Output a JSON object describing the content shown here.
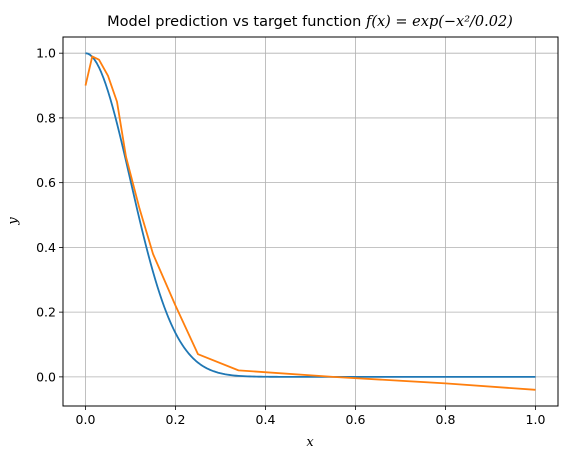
{
  "chart_data": {
    "type": "line",
    "title_text": "Model prediction vs target function ",
    "title_math": "f(x) = exp(−x²/0.02)",
    "xlabel": "x",
    "ylabel": "y",
    "xlim": [
      -0.05,
      1.05
    ],
    "ylim": [
      -0.09,
      1.05
    ],
    "grid": true,
    "x_ticks": [
      0.0,
      0.2,
      0.4,
      0.6,
      0.8,
      1.0
    ],
    "x_tick_labels": [
      "0.0",
      "0.2",
      "0.4",
      "0.6",
      "0.8",
      "1.0"
    ],
    "y_ticks": [
      0.0,
      0.2,
      0.4,
      0.6,
      0.8,
      1.0
    ],
    "y_tick_labels": [
      "0.0",
      "0.2",
      "0.4",
      "0.6",
      "0.8",
      "1.0"
    ],
    "series": [
      {
        "color": "#1f77b4",
        "function": "exp(-x^2/0.02)",
        "x_range": [
          0,
          1
        ]
      },
      {
        "color": "#ff7f0e",
        "x": [
          0.0,
          0.015,
          0.03,
          0.05,
          0.07,
          0.09,
          0.12,
          0.15,
          0.2,
          0.25,
          0.34,
          0.55,
          0.8,
          1.0
        ],
        "y": [
          0.9,
          0.99,
          0.98,
          0.93,
          0.85,
          0.68,
          0.52,
          0.38,
          0.22,
          0.07,
          0.02,
          0.0,
          -0.02,
          -0.04
        ]
      }
    ]
  }
}
